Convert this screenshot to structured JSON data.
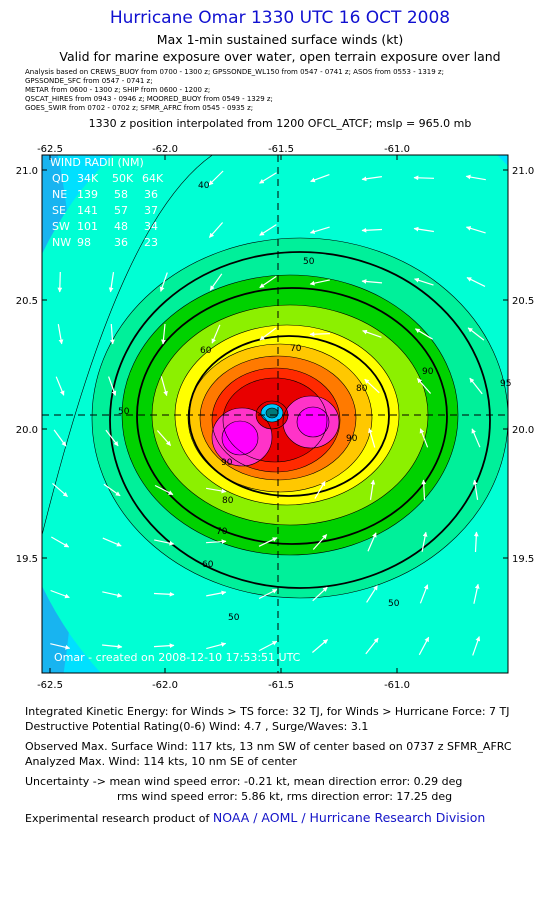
{
  "header": {
    "title": "Hurricane Omar 1330 UTC 16 OCT 2008",
    "subtitle1": "Max 1-min sustained surface winds (kt)",
    "subtitle2": "Valid for marine exposure over water, open terrain exposure over land"
  },
  "analysis_lines": [
    "Analysis based on  CREWS_BUOY from 0700 - 1300 z;  GPSSONDE_WL150 from 0547 - 0741 z;  ASOS from 0553 - 1319 z;",
    "GPSSONDE_SFC from 0547 - 0741 z;",
    "METAR from 0600 - 1300 z;  SHIP from 0600 - 1200 z;",
    "QSCAT_HIRES from 0943 - 0946 z;  MOORED_BUOY from 0549 - 1329 z;",
    "GOES_SWIR from 0702 - 0702 z;  SFMR_AFRC from 0545 - 0935 z;"
  ],
  "position_line": "1330 z position interpolated from 1200 OFCL_ATCF; mslp = 965.0 mb",
  "chart_data": {
    "type": "contour",
    "x_ticks": [
      "-62.5",
      "-62.0",
      "-61.5",
      "-61.0"
    ],
    "y_ticks": [
      "21.0",
      "20.5",
      "20.0",
      "19.5"
    ],
    "xlim": [
      -62.6,
      -60.6
    ],
    "ylim": [
      19.05,
      21.05
    ],
    "center": {
      "lon": -61.5,
      "lat": 20.05
    },
    "contour_labels": [
      "40",
      "50",
      "50",
      "50",
      "50",
      "60",
      "60",
      "70",
      "70",
      "80",
      "80",
      "90",
      "90",
      "90",
      "95"
    ],
    "wind_radii": {
      "title": "WIND RADII (NM)",
      "header": [
        "QD",
        "34K",
        "50K",
        "64K"
      ],
      "rows": [
        [
          "NE",
          "139",
          "58",
          "36"
        ],
        [
          "SE",
          "141",
          "57",
          "37"
        ],
        [
          "SW",
          "101",
          "48",
          "34"
        ],
        [
          "NW",
          "98",
          "36",
          "23"
        ]
      ]
    },
    "credit": "Omar - created on 2008-12-10 17:53:51 UTC"
  },
  "footer": {
    "ike": "Integrated Kinetic Energy:  for Winds > TS force: 32 TJ,  for Winds > Hurricane Force: 7 TJ",
    "dpr": "Destructive Potential Rating(0-6)   Wind: 4.7 , Surge/Waves: 3.1",
    "obs_max": "Observed Max. Surface Wind: 117 kts, 13 nm SW of center based on 0737 z SFMR_AFRC",
    "ana_max": "Analyzed Max. Wind: 114 kts, 10 nm SE of center",
    "unc1": "Uncertainty -> mean wind speed error:  -0.21 kt,   mean direction error: 0.29 deg",
    "unc2": "rms wind speed error: 5.86 kt,   rms direction error: 17.25 deg",
    "credit_prefix": "Experimental research product of ",
    "credit_org": "NOAA / AOML / Hurricane Research Division"
  },
  "colors": {
    "c30": "#18b4f0",
    "c35": "#00e0ff",
    "c40": "#00ffd4",
    "c50": "#00f09a",
    "c60": "#00d200",
    "c70": "#8cf000",
    "c75": "#ffff00",
    "c80": "#ffc800",
    "c85": "#ff7a00",
    "c90": "#ff2a00",
    "c95": "#e80000",
    "c100": "#ff33c8",
    "c105": "#ff00ff",
    "eye1": "#00c8ff",
    "eye2": "#007a7a",
    "title": "#1010d0"
  }
}
